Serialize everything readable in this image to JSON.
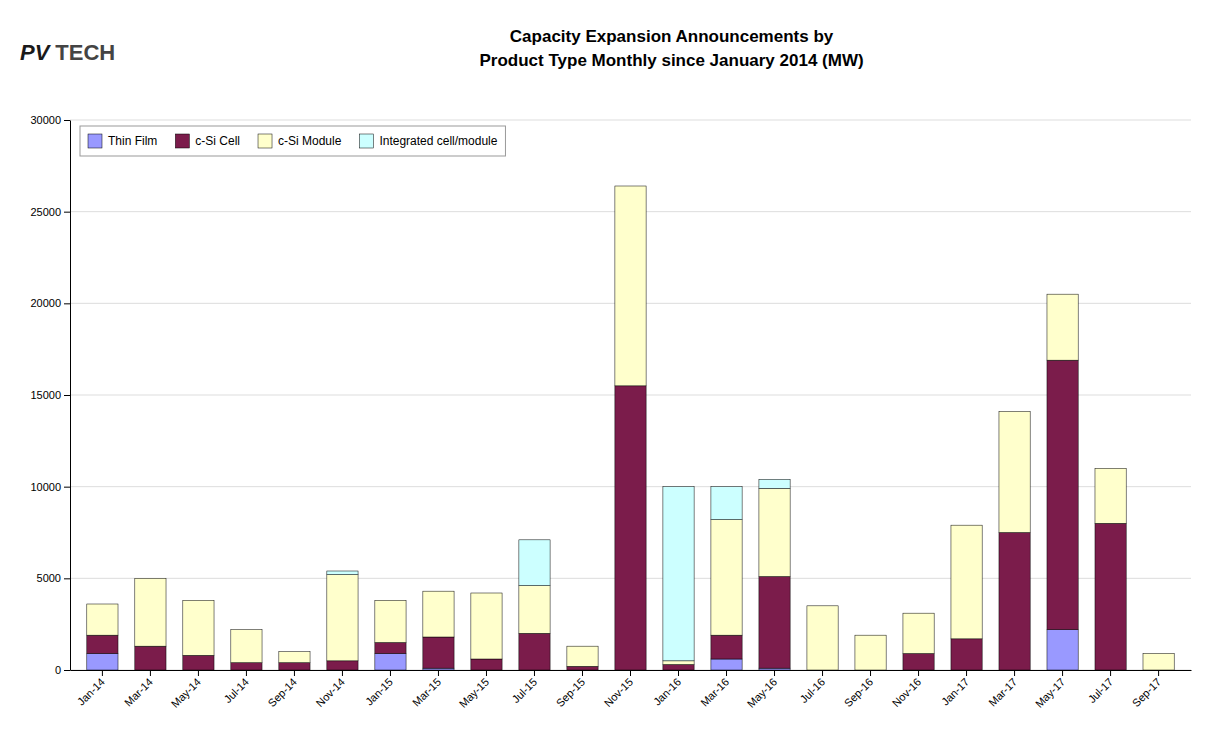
{
  "chart_data": {
    "type": "bar",
    "title": "Capacity Expansion Announcements by\nProduct Type Monthly since January 2014 (MW)",
    "annotations": [
      "PV",
      "TECH"
    ],
    "categories": [
      "Jan-14",
      "Mar-14",
      "May-14",
      "Jul-14",
      "Sep-14",
      "Nov-14",
      "Jan-15",
      "Mar-15",
      "May-15",
      "Jul-15",
      "Sep-15",
      "Nov-15",
      "Jan-16",
      "Mar-16",
      "May-16",
      "Jul-16",
      "Sep-16",
      "Nov-16",
      "Jan-17",
      "Mar-17",
      "May-17",
      "Jul-17",
      "Sep-17"
    ],
    "series": [
      {
        "name": "Thin Film",
        "color": "#9999FF",
        "values": [
          900,
          0,
          0,
          0,
          0,
          0,
          900,
          100,
          0,
          0,
          0,
          0,
          0,
          600,
          100,
          0,
          0,
          0,
          0,
          0,
          2200,
          0,
          0
        ]
      },
      {
        "name": "c-Si Cell",
        "color": "#7B1C4B",
        "values": [
          1000,
          1300,
          800,
          400,
          400,
          500,
          600,
          1700,
          600,
          2000,
          200,
          15500,
          300,
          1300,
          5000,
          0,
          0,
          900,
          1700,
          7500,
          14700,
          8000,
          0
        ]
      },
      {
        "name": "c-Si Module",
        "color": "#FFFFCC",
        "values": [
          1700,
          3700,
          3000,
          1800,
          600,
          4700,
          2300,
          2500,
          3600,
          2600,
          1100,
          10900,
          200,
          6300,
          4800,
          3500,
          1900,
          2200,
          6200,
          6600,
          3600,
          3000,
          900
        ]
      },
      {
        "name": "Integrated cell/module",
        "color": "#CCFFFF",
        "values": [
          0,
          0,
          0,
          0,
          0,
          200,
          0,
          0,
          0,
          2500,
          0,
          0,
          9500,
          1800,
          500,
          0,
          0,
          0,
          0,
          0,
          0,
          0,
          0
        ]
      }
    ],
    "stacked": true,
    "ylim": [
      0,
      30000
    ],
    "yticks": [
      0,
      5000,
      10000,
      15000,
      20000,
      25000,
      30000
    ],
    "grid": true,
    "legend": "upper left"
  }
}
